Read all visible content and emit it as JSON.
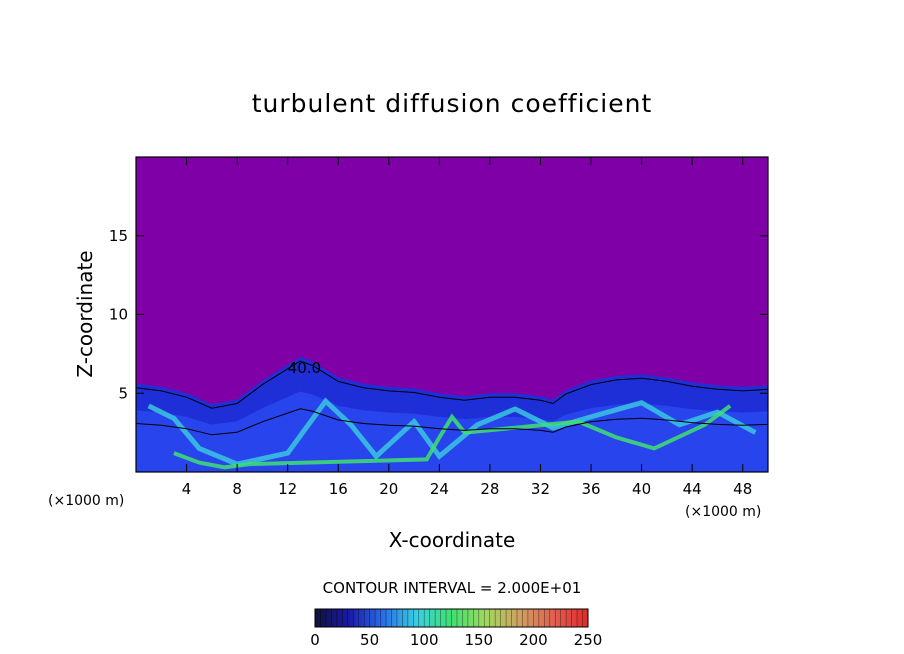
{
  "chart_data": {
    "type": "heatmap",
    "title": "turbulent diffusion coefficient",
    "xlabel": "X-coordinate",
    "ylabel": "Z-coordinate",
    "x_unit": "(×1000 m)",
    "z_unit": "(×1000 m)",
    "xlim": [
      0,
      50
    ],
    "ylim": [
      0,
      20
    ],
    "x_ticks": [
      4,
      8,
      12,
      16,
      20,
      24,
      28,
      32,
      36,
      40,
      44,
      48
    ],
    "y_ticks": [
      5,
      10,
      15
    ],
    "contour_interval_text": "CONTOUR INTERVAL = 2.000E+01",
    "contour_label": "40.0",
    "colorbar": {
      "min": 0,
      "max": 250,
      "ticks": [
        0,
        50,
        100,
        150,
        200,
        250
      ],
      "colors": [
        "#12123a",
        "#1a1aa8",
        "#2a6ee8",
        "#3ad0e0",
        "#40e070",
        "#a0d860",
        "#d0a060",
        "#e06050",
        "#e02a2a"
      ]
    },
    "background_color": "#8000a8",
    "turbulent_layer_top": [
      [
        0,
        5.6
      ],
      [
        2,
        5.4
      ],
      [
        4,
        5.0
      ],
      [
        6,
        4.3
      ],
      [
        8,
        4.6
      ],
      [
        10,
        5.8
      ],
      [
        12,
        6.8
      ],
      [
        13,
        7.3
      ],
      [
        14,
        7.0
      ],
      [
        16,
        6.0
      ],
      [
        18,
        5.6
      ],
      [
        20,
        5.4
      ],
      [
        22,
        5.3
      ],
      [
        24,
        5.0
      ],
      [
        26,
        4.8
      ],
      [
        28,
        5.0
      ],
      [
        30,
        5.0
      ],
      [
        32,
        4.8
      ],
      [
        33,
        4.6
      ],
      [
        34,
        5.2
      ],
      [
        36,
        5.8
      ],
      [
        38,
        6.1
      ],
      [
        40,
        6.2
      ],
      [
        42,
        6.0
      ],
      [
        44,
        5.7
      ],
      [
        46,
        5.5
      ],
      [
        48,
        5.4
      ],
      [
        50,
        5.5
      ]
    ]
  }
}
